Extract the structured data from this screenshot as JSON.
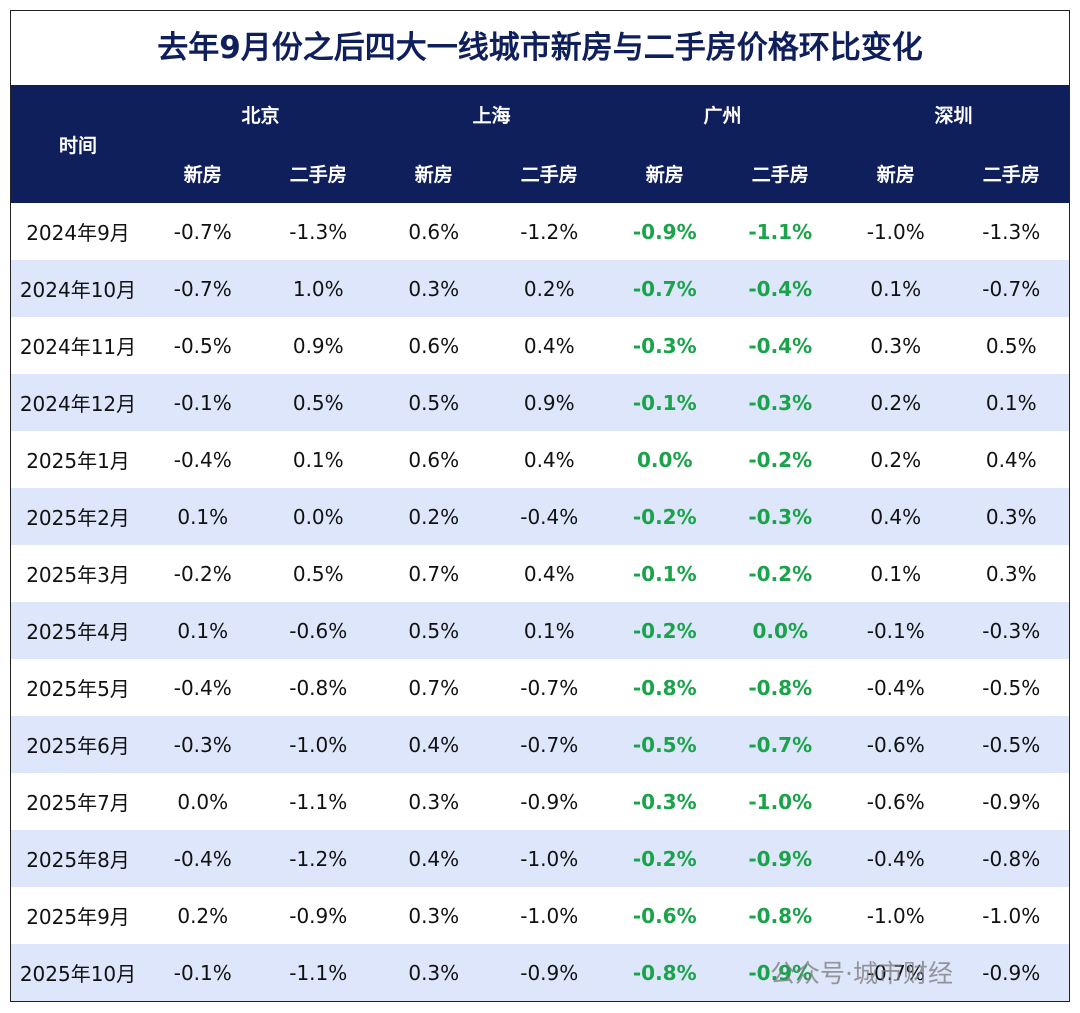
{
  "title": "去年9月份之后四大一线城市新房与二手房价格环比变化",
  "header": {
    "time": "时间",
    "cities": [
      "北京",
      "上海",
      "广州",
      "深圳"
    ],
    "sub": [
      "新房",
      "二手房",
      "新房",
      "二手房",
      "新房",
      "二手房",
      "新房",
      "二手房"
    ]
  },
  "rows": [
    [
      "2024年9月",
      "-0.7%",
      "-1.3%",
      "0.6%",
      "-1.2%",
      "-0.9%",
      "-1.1%",
      "-1.0%",
      "-1.3%"
    ],
    [
      "2024年10月",
      "-0.7%",
      "1.0%",
      "0.3%",
      "0.2%",
      "-0.7%",
      "-0.4%",
      "0.1%",
      "-0.7%"
    ],
    [
      "2024年11月",
      "-0.5%",
      "0.9%",
      "0.6%",
      "0.4%",
      "-0.3%",
      "-0.4%",
      "0.3%",
      "0.5%"
    ],
    [
      "2024年12月",
      "-0.1%",
      "0.5%",
      "0.5%",
      "0.9%",
      "-0.1%",
      "-0.3%",
      "0.2%",
      "0.1%"
    ],
    [
      "2025年1月",
      "-0.4%",
      "0.1%",
      "0.6%",
      "0.4%",
      "0.0%",
      "-0.2%",
      "0.2%",
      "0.4%"
    ],
    [
      "2025年2月",
      "0.1%",
      "0.0%",
      "0.2%",
      "-0.4%",
      "-0.2%",
      "-0.3%",
      "0.4%",
      "0.3%"
    ],
    [
      "2025年3月",
      "-0.2%",
      "0.5%",
      "0.7%",
      "0.4%",
      "-0.1%",
      "-0.2%",
      "0.1%",
      "0.3%"
    ],
    [
      "2025年4月",
      "0.1%",
      "-0.6%",
      "0.5%",
      "0.1%",
      "-0.2%",
      "0.0%",
      "-0.1%",
      "-0.3%"
    ],
    [
      "2025年5月",
      "-0.4%",
      "-0.8%",
      "0.7%",
      "-0.7%",
      "-0.8%",
      "-0.8%",
      "-0.4%",
      "-0.5%"
    ],
    [
      "2025年6月",
      "-0.3%",
      "-1.0%",
      "0.4%",
      "-0.7%",
      "-0.5%",
      "-0.7%",
      "-0.6%",
      "-0.5%"
    ],
    [
      "2025年7月",
      "0.0%",
      "-1.1%",
      "0.3%",
      "-0.9%",
      "-0.3%",
      "-1.0%",
      "-0.6%",
      "-0.9%"
    ],
    [
      "2025年8月",
      "-0.4%",
      "-1.2%",
      "0.4%",
      "-1.0%",
      "-0.2%",
      "-0.9%",
      "-0.4%",
      "-0.8%"
    ],
    [
      "2025年9月",
      "0.2%",
      "-0.9%",
      "0.3%",
      "-1.0%",
      "-0.6%",
      "-0.8%",
      "-1.0%",
      "-1.0%"
    ],
    [
      "2025年10月",
      "-0.1%",
      "-1.1%",
      "0.3%",
      "-0.9%",
      "-0.8%",
      "-0.9%",
      "-0.7%",
      "-0.9%"
    ]
  ],
  "watermark": "公众号·城市财经"
}
